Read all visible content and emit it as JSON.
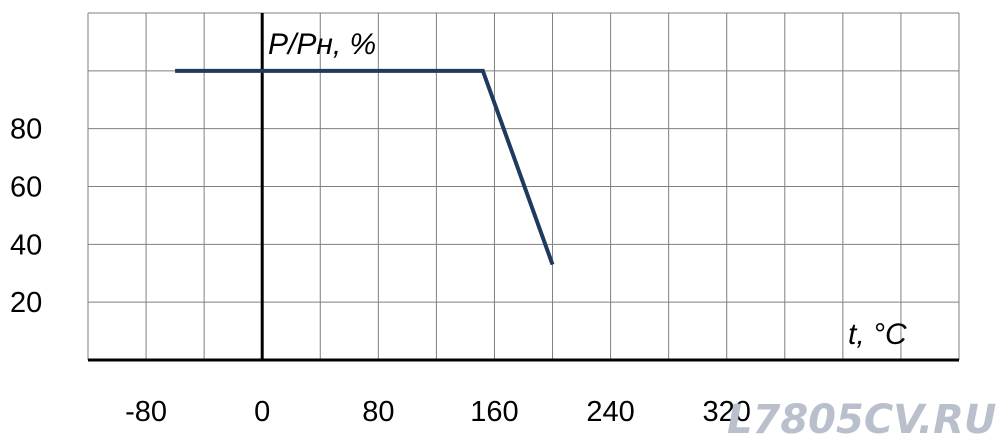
{
  "chart_data": {
    "type": "line",
    "ylabel": "P/Pн, %",
    "xlabel": "t, °C",
    "x_ticks": [
      "-80",
      "0",
      "80",
      "160",
      "240",
      "320"
    ],
    "y_ticks": [
      "20",
      "40",
      "60",
      "80"
    ],
    "xlim": [
      -120,
      480
    ],
    "ylim": [
      0,
      120
    ],
    "grid": true,
    "series": [
      {
        "x": [
          -60,
          152,
          200
        ],
        "y": [
          100,
          100,
          33
        ],
        "color": "#1f3a5f"
      }
    ]
  },
  "watermark": "L7805CV.RU"
}
